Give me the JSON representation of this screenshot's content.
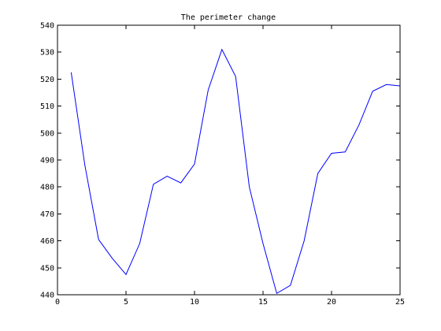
{
  "chart_data": {
    "type": "line",
    "title": "The perimeter change",
    "xlabel": "",
    "ylabel": "",
    "xlim": [
      0,
      25
    ],
    "ylim": [
      440,
      540
    ],
    "xticks": [
      0,
      5,
      10,
      15,
      20,
      25
    ],
    "yticks": [
      440,
      450,
      460,
      470,
      480,
      490,
      500,
      510,
      520,
      530,
      540
    ],
    "grid": false,
    "series": [
      {
        "color": "#0000ff",
        "x": [
          1,
          2,
          3,
          4,
          5,
          6,
          7,
          8,
          9,
          10,
          11,
          12,
          13,
          14,
          15,
          16,
          17,
          18,
          19,
          20,
          21,
          22,
          23,
          24,
          25
        ],
        "y": [
          522.5,
          488,
          460.5,
          453.5,
          447.5,
          459,
          481,
          484,
          481.5,
          488.5,
          516,
          531,
          521,
          480,
          459,
          440.5,
          443.5,
          460,
          485,
          492.5,
          493,
          503,
          515.5,
          518,
          517.5
        ]
      }
    ]
  }
}
